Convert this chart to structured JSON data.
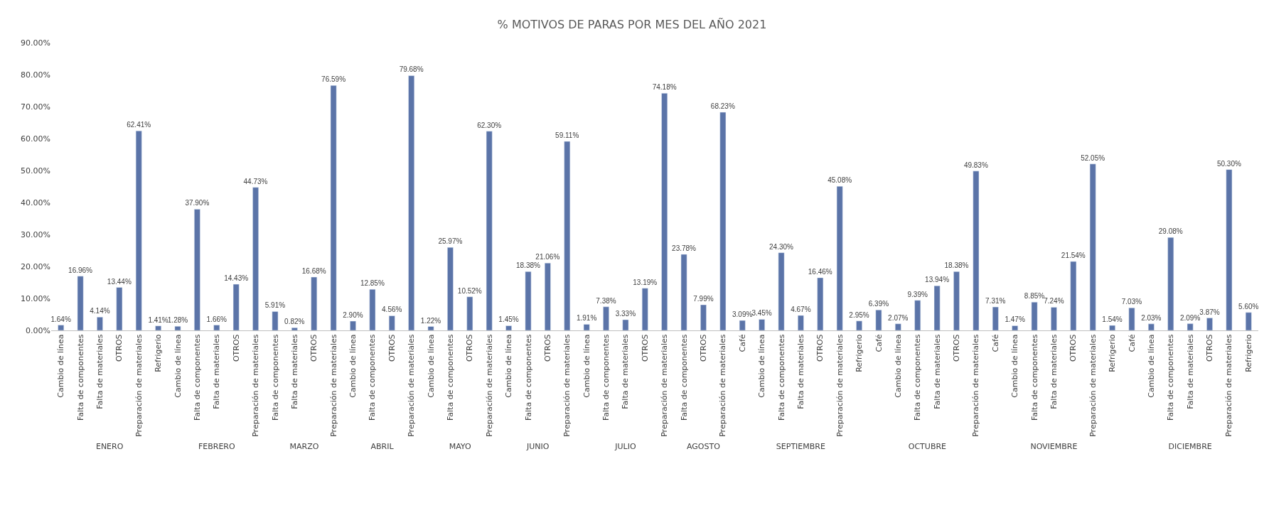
{
  "chart_data": [
    {
      "type": "bar",
      "xlabel": "ENERO",
      "categories": [
        "Cambio de línea",
        "Falta de componentes",
        "Falta de materiales",
        "OTROS",
        "Preparación de materiales",
        "Refrigerio"
      ],
      "values": [
        1.64,
        16.96,
        4.14,
        13.44,
        62.41,
        1.41
      ],
      "value_labels": [
        "1.64%",
        "16.96%",
        "4.14%",
        "13.44%",
        "62.41%",
        "1.41%"
      ],
      "color": "#5b74a8",
      "ylim": [
        0,
        90
      ],
      "yticks": [
        {
          "value": 0,
          "label": "0.00%"
        },
        {
          "value": 10,
          "label": "10.00%"
        },
        {
          "value": 20,
          "label": "20.00%"
        },
        {
          "value": 30,
          "label": "30.00%"
        },
        {
          "value": 40,
          "label": "40.00%"
        },
        {
          "value": 50,
          "label": "50.00%"
        },
        {
          "value": 60,
          "label": "60.00%"
        },
        {
          "value": 70,
          "label": "70.00%"
        },
        {
          "value": 80,
          "label": "80.00%"
        },
        {
          "value": 90,
          "label": "90.00%"
        }
      ]
    },
    {
      "type": "bar",
      "xlabel": "FEBRERO",
      "categories": [
        "Cambio de línea",
        "Falta de componentes",
        "Falta de materiales",
        "OTROS",
        "Preparación de materiales"
      ],
      "values": [
        1.28,
        37.9,
        1.66,
        14.43,
        44.73
      ],
      "value_labels": [
        "1.28%",
        "37.90%",
        "1.66%",
        "14.43%",
        "44.73%"
      ],
      "color": "#5b74a8",
      "ylim": [
        0,
        90
      ],
      "tick_labels": "x"
    },
    {
      "type": "bar",
      "xlabel": "MARZO",
      "categories": [
        "Falta de componentes",
        "Falta de materiales",
        "OTROS",
        "Preparación de materiales"
      ],
      "values": [
        5.91,
        0.82,
        16.68,
        76.59
      ],
      "value_labels": [
        "5.91%",
        "0.82%",
        "16.68%",
        "76.59%"
      ],
      "color": "#5b74a8",
      "ylim": [
        0,
        90
      ],
      "tick_labels": "x"
    },
    {
      "type": "bar",
      "xlabel": "ABRIL",
      "categories": [
        "Cambio de línea",
        "Falta de componentes",
        "OTROS",
        "Preparación de materiales"
      ],
      "values": [
        2.9,
        12.85,
        4.56,
        79.68
      ],
      "value_labels": [
        "2.90%",
        "12.85%",
        "4.56%",
        "79.68%"
      ],
      "color": "#5b74a8",
      "ylim": [
        0,
        90
      ],
      "tick_labels": "x"
    },
    {
      "type": "bar",
      "xlabel": "MAYO",
      "categories": [
        "Cambio de línea",
        "Falta de componentes",
        "OTROS",
        "Preparación de materiales"
      ],
      "values": [
        1.22,
        25.97,
        10.52,
        62.3
      ],
      "value_labels": [
        "1.22%",
        "25.97%",
        "10.52%",
        "62.30%"
      ],
      "color": "#5b74a8",
      "ylim": [
        0,
        90
      ],
      "tick_labels": "x"
    },
    {
      "type": "bar",
      "xlabel": "JUNIO",
      "categories": [
        "Cambio de línea",
        "Falta de componentes",
        "OTROS",
        "Preparación de materiales"
      ],
      "values": [
        1.45,
        18.38,
        21.06,
        59.11
      ],
      "value_labels": [
        "1.45%",
        "18.38%",
        "21.06%",
        "59.11%"
      ],
      "color": "#5b74a8",
      "ylim": [
        0,
        90
      ],
      "tick_labels": "x"
    },
    {
      "type": "bar",
      "title": "% MOTIVOS DE PARAS POR MES DEL AÑO 2021",
      "xlabel": "JULIO",
      "categories": [
        "Cambio de línea",
        "Falta de componentes",
        "Falta de materiales",
        "OTROS",
        "Preparación de materiales"
      ],
      "values": [
        1.91,
        7.38,
        3.33,
        13.19,
        74.18
      ],
      "value_labels": [
        "1.91%",
        "7.38%",
        "3.33%",
        "13.19%",
        "74.18%"
      ],
      "color": "#5b74a8",
      "ylim": [
        0,
        90
      ],
      "tick_labels": "x"
    },
    {
      "type": "bar",
      "xlabel": "AGOSTO",
      "categories": [
        "Falta de componentes",
        "OTROS",
        "Preparación de materiales"
      ],
      "values": [
        23.78,
        7.99,
        68.23
      ],
      "value_labels": [
        "23.78%",
        "7.99%",
        "68.23%"
      ],
      "color": "#5b74a8",
      "ylim": [
        0,
        90
      ],
      "tick_labels": "x"
    },
    {
      "type": "bar",
      "xlabel": "SEPTIEMBRE",
      "categories": [
        "Café",
        "Cambio de línea",
        "Falta de componentes",
        "Falta de materiales",
        "OTROS",
        "Preparación de materiales",
        "Refrigerio"
      ],
      "values": [
        3.09,
        3.45,
        24.3,
        4.67,
        16.46,
        45.08,
        2.95
      ],
      "value_labels": [
        "3.09%",
        "3.45%",
        "24.30%",
        "4.67%",
        "16.46%",
        "45.08%",
        "2.95%"
      ],
      "color": "#5b74a8",
      "ylim": [
        0,
        90
      ],
      "tick_labels": "x"
    },
    {
      "type": "bar",
      "xlabel": "OCTUBRE",
      "categories": [
        "Café",
        "Cambio de línea",
        "Falta de componentes",
        "Falta de materiales",
        "OTROS",
        "Preparación de materiales"
      ],
      "values": [
        6.39,
        2.07,
        9.39,
        13.94,
        18.38,
        49.83
      ],
      "value_labels": [
        "6.39%",
        "2.07%",
        "9.39%",
        "13.94%",
        "18.38%",
        "49.83%"
      ],
      "color": "#5b74a8",
      "ylim": [
        0,
        90
      ],
      "tick_labels": "x"
    },
    {
      "type": "bar",
      "xlabel": "NOVIEMBRE",
      "categories": [
        "Café",
        "Cambio de línea",
        "Falta de componentes",
        "Falta de materiales",
        "OTROS",
        "Preparación de materiales",
        "Refrigerio"
      ],
      "values": [
        7.31,
        1.47,
        8.85,
        7.24,
        21.54,
        52.05,
        1.54
      ],
      "value_labels": [
        "7.31%",
        "1.47%",
        "8.85%",
        "7.24%",
        "21.54%",
        "52.05%",
        "1.54%"
      ],
      "color": "#5b74a8",
      "ylim": [
        0,
        90
      ],
      "tick_labels": "x"
    },
    {
      "type": "bar",
      "xlabel": "DICIEMBRE",
      "categories": [
        "Café",
        "Cambio de línea",
        "Falta de componentes",
        "Falta de materiales",
        "OTROS",
        "Preparación de materiales",
        "Refrigerio"
      ],
      "values": [
        7.03,
        2.03,
        29.08,
        2.09,
        3.87,
        50.3,
        5.6
      ],
      "value_labels": [
        "7.03%",
        "2.03%",
        "29.08%",
        "2.09%",
        "3.87%",
        "50.30%",
        "5.60%"
      ],
      "color": "#5b74a8",
      "ylim": [
        0,
        90
      ],
      "tick_labels": "x"
    }
  ]
}
